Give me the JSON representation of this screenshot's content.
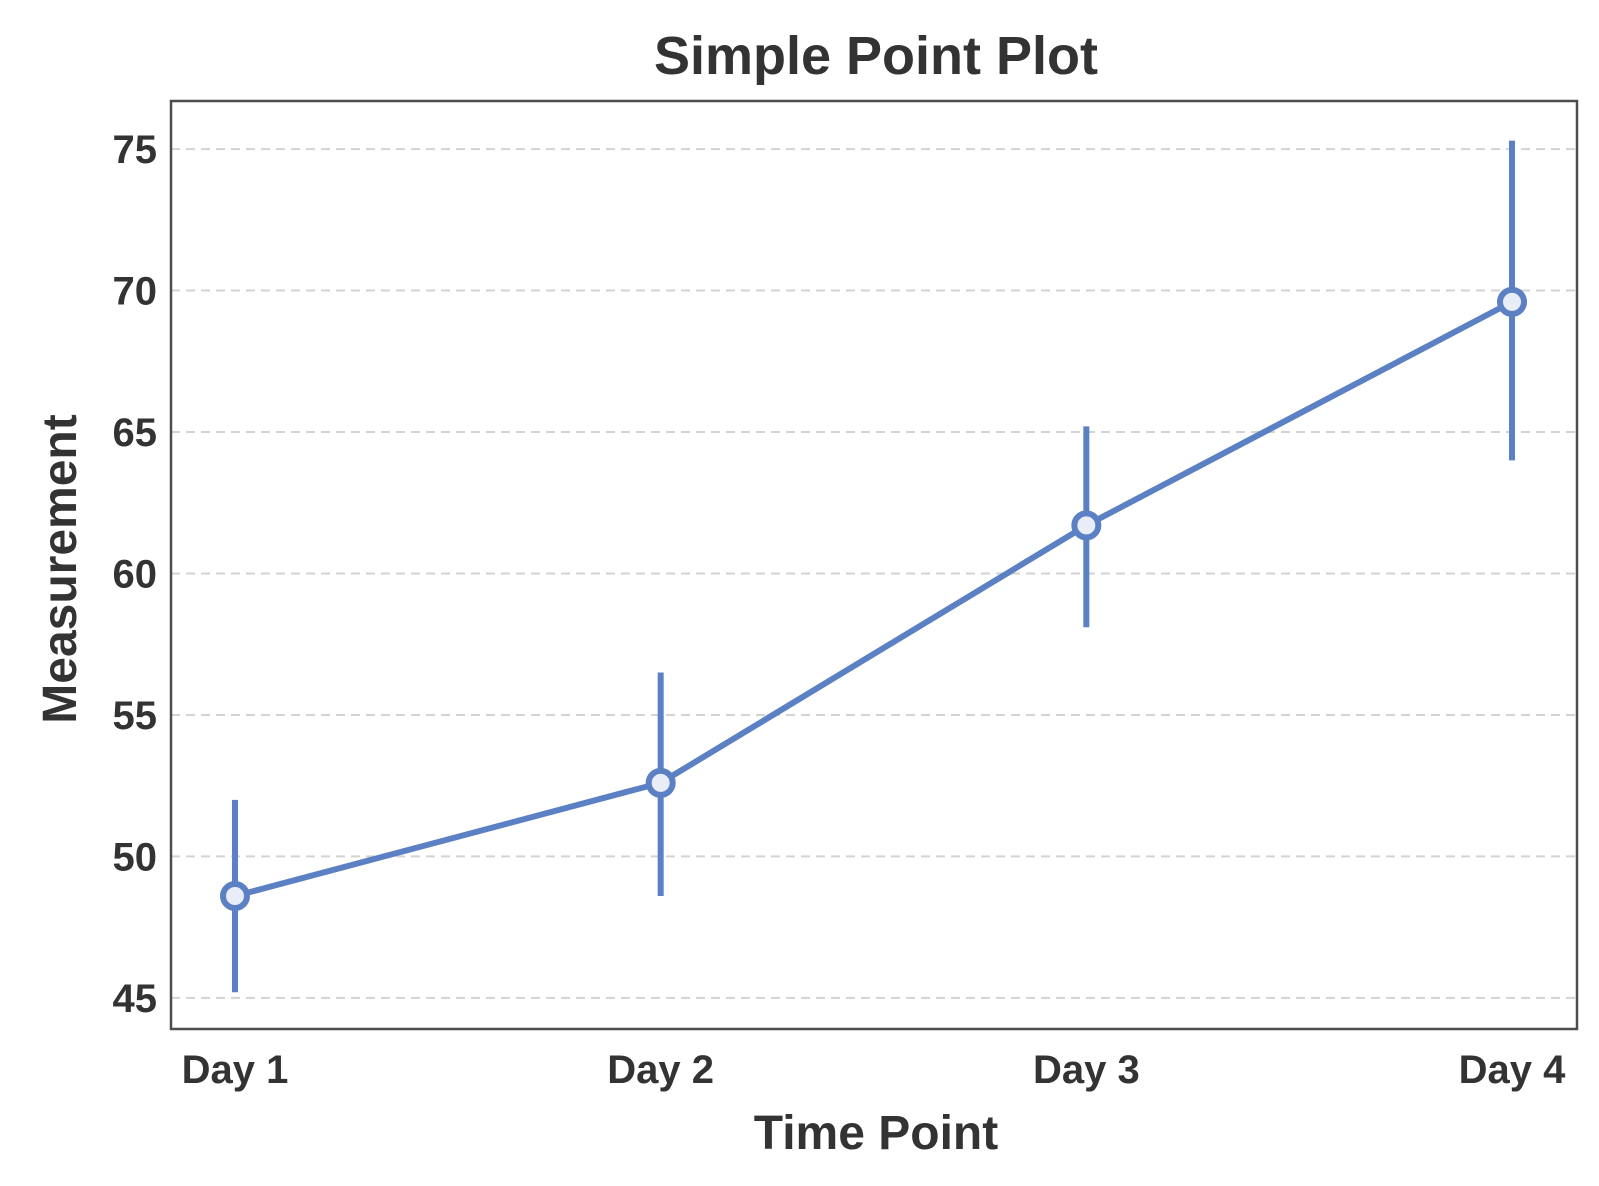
{
  "chart_data": {
    "type": "line",
    "title": "Simple Point Plot",
    "xlabel": "Time Point",
    "ylabel": "Measurement",
    "categories": [
      "Day 1",
      "Day 2",
      "Day 3",
      "Day 4"
    ],
    "series": [
      {
        "values": [
          48.6,
          52.6,
          61.7,
          69.6
        ],
        "error_low": [
          45.2,
          48.6,
          58.1,
          64.0
        ],
        "error_high": [
          52.0,
          56.5,
          65.2,
          75.3
        ],
        "color": "#5b80c4"
      }
    ],
    "ylim": [
      43.9,
      76.7
    ],
    "yticks": [
      45,
      50,
      55,
      60,
      65,
      70,
      75
    ],
    "grid": "horizontal-dashed",
    "marker_fill": "#e8edf7"
  }
}
